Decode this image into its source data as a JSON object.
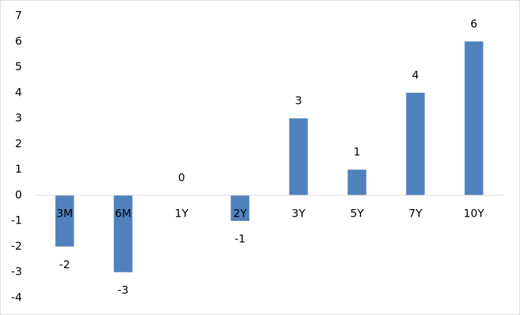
{
  "chart_data": {
    "type": "bar",
    "categories": [
      "3M",
      "6M",
      "1Y",
      "2Y",
      "3Y",
      "5Y",
      "7Y",
      "10Y"
    ],
    "values": [
      -2,
      -3,
      0,
      -1,
      3,
      1,
      4,
      6
    ],
    "color": "#4f81bd",
    "ylim": [
      -4,
      7
    ],
    "yticks": [
      -4,
      -3,
      -2,
      -1,
      0,
      1,
      2,
      3,
      4,
      5,
      6,
      7
    ],
    "grid": false
  }
}
